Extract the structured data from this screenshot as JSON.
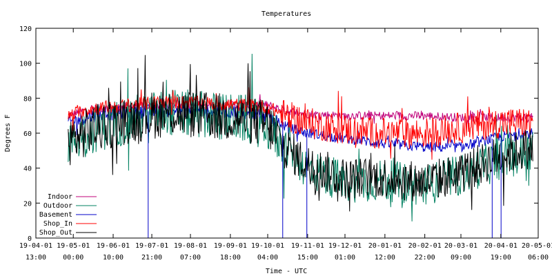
{
  "chart_data": {
    "type": "line",
    "title": "Temperatures",
    "xlabel": "Time - UTC",
    "ylabel": "Degrees F",
    "ylim": [
      0,
      120
    ],
    "yticks": [
      0,
      20,
      40,
      60,
      80,
      100,
      120
    ],
    "xlim": [
      "2019-04-01 13:00",
      "2020-05-01 06:00"
    ],
    "xticks": [
      {
        "date": "2019-04-01 13:00",
        "line1": "19-04-01",
        "line2": "13:00"
      },
      {
        "date": "2019-05-01 00:00",
        "line1": "19-05-01",
        "line2": "00:00"
      },
      {
        "date": "2019-06-01 10:00",
        "line1": "19-06-01",
        "line2": "10:00"
      },
      {
        "date": "2019-07-01 21:00",
        "line1": "19-07-01",
        "line2": "21:00"
      },
      {
        "date": "2019-08-01 07:00",
        "line1": "19-08-01",
        "line2": "07:00"
      },
      {
        "date": "2019-09-01 18:00",
        "line1": "19-09-01",
        "line2": "18:00"
      },
      {
        "date": "2019-10-01 04:00",
        "line1": "19-10-01",
        "line2": "04:00"
      },
      {
        "date": "2019-11-01 15:00",
        "line1": "19-11-01",
        "line2": "15:00"
      },
      {
        "date": "2019-12-01 01:00",
        "line1": "19-12-01",
        "line2": "01:00"
      },
      {
        "date": "2020-01-01 12:00",
        "line1": "20-01-01",
        "line2": "12:00"
      },
      {
        "date": "2020-02-01 22:00",
        "line1": "20-02-01",
        "line2": "22:00"
      },
      {
        "date": "2020-03-01 09:00",
        "line1": "20-03-01",
        "line2": "09:00"
      },
      {
        "date": "2020-04-01 19:00",
        "line1": "20-04-01",
        "line2": "19:00"
      },
      {
        "date": "2020-05-01 06:00",
        "line1": "20-05-01",
        "line2": "06:00"
      }
    ],
    "grid": false,
    "legend_position": "bottom-left",
    "series": [
      {
        "name": "Indoor",
        "color": "#c0007a",
        "key": [
          [
            "2019-04-27",
            70
          ],
          [
            "2019-05-15",
            74
          ],
          [
            "2019-06-15",
            75
          ],
          [
            "2019-07-15",
            76
          ],
          [
            "2019-08-15",
            76
          ],
          [
            "2019-09-15",
            76
          ],
          [
            "2019-10-01",
            76
          ],
          [
            "2019-10-15",
            73
          ],
          [
            "2019-11-01",
            71
          ],
          [
            "2019-12-01",
            70
          ],
          [
            "2020-01-01",
            70
          ],
          [
            "2020-02-01",
            70
          ],
          [
            "2020-03-01",
            69
          ],
          [
            "2020-04-01",
            69
          ],
          [
            "2020-04-27",
            69
          ]
        ]
      },
      {
        "name": "Outdoor",
        "color": "#008060",
        "key": [
          [
            "2019-04-27",
            55
          ],
          [
            "2019-05-15",
            62
          ],
          [
            "2019-06-15",
            68
          ],
          [
            "2019-07-15",
            72
          ],
          [
            "2019-08-15",
            70
          ],
          [
            "2019-09-15",
            68
          ],
          [
            "2019-10-01",
            64
          ],
          [
            "2019-10-15",
            52
          ],
          [
            "2019-11-01",
            40
          ],
          [
            "2019-12-01",
            32
          ],
          [
            "2020-01-01",
            33
          ],
          [
            "2020-02-01",
            30
          ],
          [
            "2020-03-01",
            36
          ],
          [
            "2020-04-01",
            45
          ],
          [
            "2020-04-27",
            50
          ]
        ]
      },
      {
        "name": "Basement",
        "color": "#0000c8",
        "key": [
          [
            "2019-04-27",
            66
          ],
          [
            "2019-05-15",
            70
          ],
          [
            "2019-06-15",
            72
          ],
          [
            "2019-07-15",
            73
          ],
          [
            "2019-08-15",
            73
          ],
          [
            "2019-09-15",
            72
          ],
          [
            "2019-10-01",
            70
          ],
          [
            "2019-10-15",
            64
          ],
          [
            "2019-11-01",
            60
          ],
          [
            "2019-12-01",
            57
          ],
          [
            "2020-01-01",
            54
          ],
          [
            "2020-02-01",
            52
          ],
          [
            "2020-03-01",
            52
          ],
          [
            "2020-04-01",
            58
          ],
          [
            "2020-04-27",
            60
          ]
        ]
      },
      {
        "name": "Shop_In",
        "color": "#ff0000",
        "key": [
          [
            "2019-04-27",
            70
          ],
          [
            "2019-05-15",
            74
          ],
          [
            "2019-06-15",
            76
          ],
          [
            "2019-07-15",
            78
          ],
          [
            "2019-08-15",
            77
          ],
          [
            "2019-09-15",
            76
          ],
          [
            "2019-10-01",
            75
          ],
          [
            "2019-10-15",
            70
          ],
          [
            "2019-11-01",
            66
          ],
          [
            "2019-12-01",
            62
          ],
          [
            "2020-01-01",
            60
          ],
          [
            "2020-02-01",
            60
          ],
          [
            "2020-03-01",
            63
          ],
          [
            "2020-04-01",
            66
          ],
          [
            "2020-04-27",
            66
          ]
        ]
      },
      {
        "name": "Shop_Out",
        "color": "#000000",
        "key": [
          [
            "2019-04-27",
            55
          ],
          [
            "2019-05-15",
            62
          ],
          [
            "2019-06-15",
            68
          ],
          [
            "2019-07-15",
            72
          ],
          [
            "2019-08-15",
            70
          ],
          [
            "2019-09-15",
            68
          ],
          [
            "2019-10-01",
            65
          ],
          [
            "2019-10-15",
            52
          ],
          [
            "2019-11-01",
            42
          ],
          [
            "2019-12-01",
            34
          ],
          [
            "2020-01-01",
            35
          ],
          [
            "2020-02-01",
            32
          ],
          [
            "2020-03-01",
            37
          ],
          [
            "2020-04-01",
            47
          ],
          [
            "2020-04-27",
            52
          ]
        ]
      }
    ],
    "dropouts": [
      {
        "date": "2019-06-29",
        "series": "Basement"
      },
      {
        "date": "2019-10-13",
        "series": "Basement"
      },
      {
        "date": "2019-11-01",
        "series": "Basement"
      },
      {
        "date": "2020-03-26",
        "series": "Basement"
      },
      {
        "date": "2020-04-02",
        "series": "Basement"
      }
    ]
  }
}
